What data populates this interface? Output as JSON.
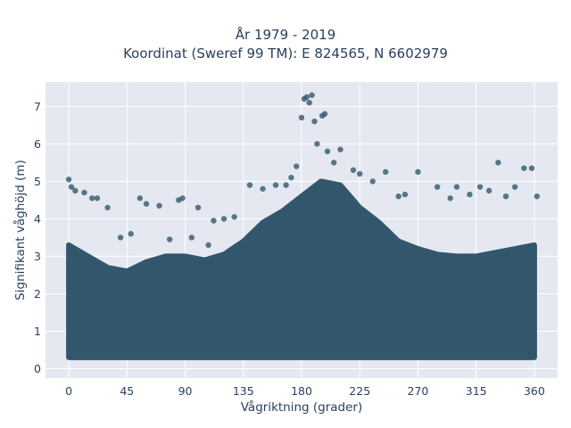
{
  "chart_data": {
    "type": "scatter",
    "title": "År 1979 - 2019",
    "subtitle": "Koordinat (Sweref 99 TM): E 824565, N 6602979",
    "xlabel": "Vågriktning (grader)",
    "ylabel": "Signifikant våghöjd (m)",
    "xlim": [
      -18,
      378
    ],
    "ylim": [
      -0.25,
      7.65
    ],
    "xticks": [
      0,
      45,
      90,
      135,
      180,
      225,
      270,
      315,
      360
    ],
    "yticks": [
      0,
      1,
      2,
      3,
      4,
      5,
      6,
      7
    ],
    "grid": true,
    "legend": "none",
    "marker_color": "#32576d",
    "plot_background": "#e5e8f1",
    "series": [
      {
        "points": [
          [
            180,
            6.7
          ],
          [
            182,
            7.2
          ],
          [
            184,
            7.25
          ],
          [
            186,
            7.1
          ],
          [
            188,
            7.3
          ],
          [
            190,
            6.6
          ],
          [
            192,
            6.0
          ],
          [
            196,
            6.75
          ],
          [
            198,
            6.8
          ],
          [
            200,
            5.8
          ],
          [
            205,
            5.5
          ],
          [
            210,
            5.85
          ],
          [
            176,
            5.4
          ],
          [
            172,
            5.1
          ],
          [
            168,
            4.9
          ],
          [
            160,
            4.9
          ],
          [
            150,
            4.8
          ],
          [
            140,
            4.9
          ],
          [
            0,
            5.05
          ],
          [
            2,
            4.85
          ],
          [
            5,
            4.75
          ],
          [
            12,
            4.7
          ],
          [
            18,
            4.55
          ],
          [
            22,
            4.55
          ],
          [
            30,
            4.3
          ],
          [
            55,
            4.55
          ],
          [
            60,
            4.4
          ],
          [
            70,
            4.35
          ],
          [
            85,
            4.5
          ],
          [
            88,
            4.55
          ],
          [
            100,
            4.3
          ],
          [
            112,
            3.95
          ],
          [
            120,
            4.0
          ],
          [
            128,
            4.05
          ],
          [
            220,
            5.3
          ],
          [
            225,
            5.2
          ],
          [
            235,
            5.0
          ],
          [
            245,
            5.25
          ],
          [
            255,
            4.6
          ],
          [
            260,
            4.65
          ],
          [
            270,
            5.25
          ],
          [
            285,
            4.85
          ],
          [
            295,
            4.55
          ],
          [
            300,
            4.85
          ],
          [
            310,
            4.65
          ],
          [
            318,
            4.85
          ],
          [
            325,
            4.75
          ],
          [
            332,
            5.5
          ],
          [
            338,
            4.6
          ],
          [
            345,
            4.85
          ],
          [
            352,
            5.35
          ],
          [
            358,
            5.35
          ],
          [
            362,
            4.6
          ],
          [
            40,
            3.5
          ],
          [
            48,
            3.6
          ],
          [
            78,
            3.45
          ],
          [
            95,
            3.5
          ],
          [
            108,
            3.3
          ]
        ]
      }
    ]
  }
}
